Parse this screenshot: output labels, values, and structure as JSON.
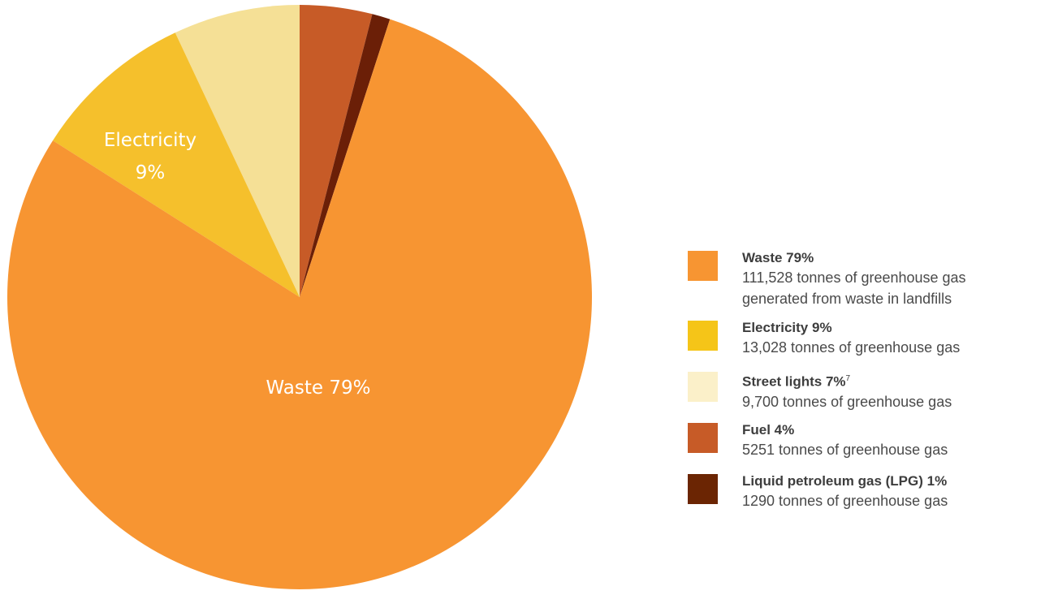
{
  "chart_data": {
    "type": "pie",
    "slices": [
      {
        "label": "Waste",
        "value": 79,
        "color": "#f79532"
      },
      {
        "label": "Electricity",
        "value": 9,
        "color": "#f5c02c"
      },
      {
        "label": "Street lights",
        "value": 7,
        "color": "#f5e096"
      },
      {
        "label": "Fuel",
        "value": 4,
        "color": "#c75b27"
      },
      {
        "label": "Liquid petroleum gas (LPG)",
        "value": 1,
        "color": "#6b1f07"
      }
    ],
    "slice_labels": {
      "waste": "Waste 79%",
      "electricity_name": "Electricity",
      "electricity_pct": "9%"
    },
    "legend_placement": "right"
  },
  "legend": {
    "items": [
      {
        "color": "#f79532",
        "title": "Waste 79%",
        "desc_line1": "111,528 tonnes of greenhouse gas",
        "desc_line2": "generated from waste in landfills"
      },
      {
        "color": "#f5c518",
        "title": "Electricity 9%",
        "desc_line1": "13,028 tonnes of greenhouse gas"
      },
      {
        "color": "#fbf0c9",
        "title": "Street lights 7%",
        "footnote": "7",
        "desc_line1": "9,700 tonnes of greenhouse gas"
      },
      {
        "color": "#c75b27",
        "title": "Fuel 4%",
        "desc_line1": "5251 tonnes of greenhouse gas"
      },
      {
        "color": "#6b2503",
        "title": "Liquid petroleum gas (LPG) 1%",
        "desc_line1": "1290 tonnes of greenhouse gas"
      }
    ]
  }
}
